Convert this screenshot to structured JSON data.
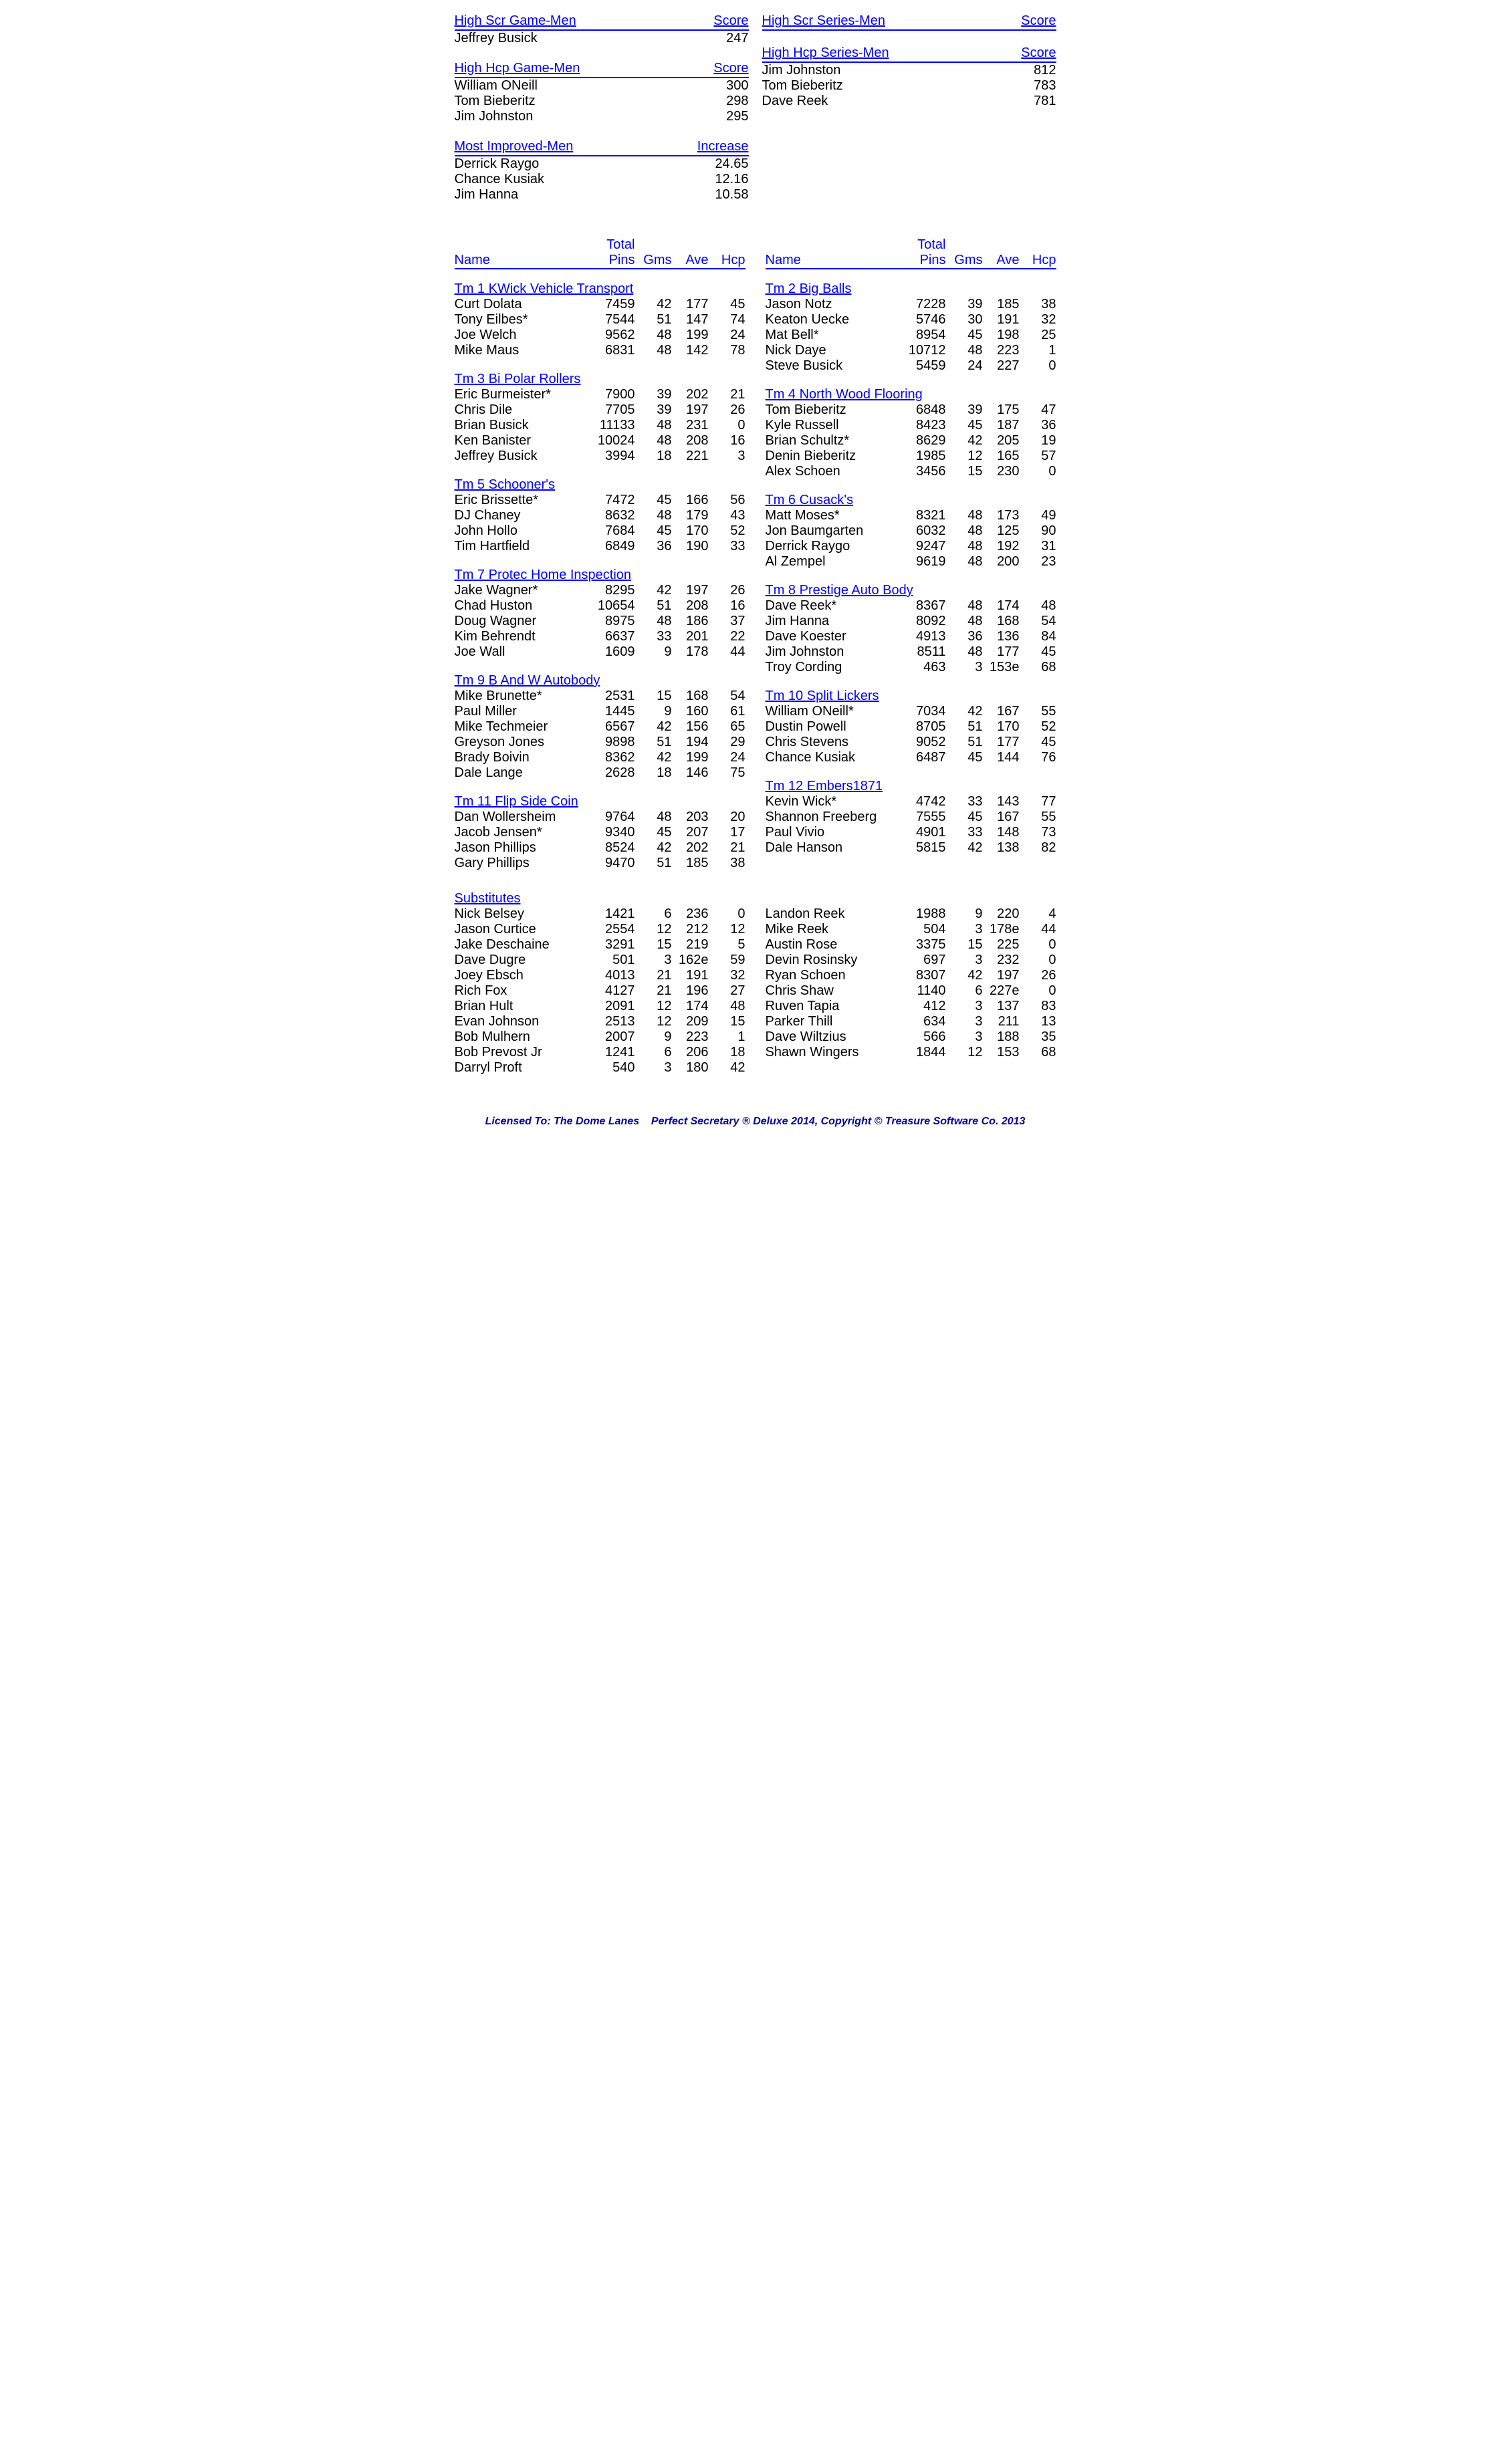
{
  "colors": {
    "link": "#0000ff",
    "text": "#000000",
    "footer": "#0000a0",
    "background": "#ffffff"
  },
  "topLeft": [
    {
      "label": "High Scr Game-Men",
      "scoreLabel": "Score",
      "rows": [
        {
          "name": "Jeffrey Busick",
          "score": "247"
        }
      ]
    },
    {
      "label": "High Hcp Game-Men",
      "scoreLabel": "Score",
      "rows": [
        {
          "name": "William ONeill",
          "score": "300"
        },
        {
          "name": "Tom Bieberitz",
          "score": "298"
        },
        {
          "name": "Jim Johnston",
          "score": "295"
        }
      ]
    },
    {
      "label": "Most Improved-Men",
      "scoreLabel": "Increase",
      "rows": [
        {
          "name": "Derrick Raygo",
          "score": "24.65"
        },
        {
          "name": "Chance Kusiak",
          "score": "12.16"
        },
        {
          "name": "Jim Hanna",
          "score": "10.58"
        }
      ]
    }
  ],
  "topRight": [
    {
      "label": "High Scr Series-Men",
      "scoreLabel": "Score",
      "rows": []
    },
    {
      "label": "High Hcp Series-Men",
      "scoreLabel": "Score",
      "rows": [
        {
          "name": "Jim Johnston",
          "score": "812"
        },
        {
          "name": "Tom Bieberitz",
          "score": "783"
        },
        {
          "name": "Dave Reek",
          "score": "781"
        }
      ]
    }
  ],
  "rosterHeader": {
    "name": "Name",
    "totalPins1": "Total",
    "totalPins2": "Pins",
    "gms": "Gms",
    "ave": "Ave",
    "hcp": "Hcp"
  },
  "teamsLeft": [
    {
      "title": "Tm 1 KWick Vehicle Transport",
      "players": [
        {
          "n": "Curt Dolata",
          "p": "7459",
          "g": "42",
          "a": "177",
          "h": "45"
        },
        {
          "n": "Tony Eilbes*",
          "p": "7544",
          "g": "51",
          "a": "147",
          "h": "74"
        },
        {
          "n": "Joe Welch",
          "p": "9562",
          "g": "48",
          "a": "199",
          "h": "24"
        },
        {
          "n": "Mike Maus",
          "p": "6831",
          "g": "48",
          "a": "142",
          "h": "78"
        }
      ]
    },
    {
      "title": "Tm 3 Bi Polar Rollers",
      "players": [
        {
          "n": "Eric Burmeister*",
          "p": "7900",
          "g": "39",
          "a": "202",
          "h": "21"
        },
        {
          "n": "Chris Dile",
          "p": "7705",
          "g": "39",
          "a": "197",
          "h": "26"
        },
        {
          "n": "Brian Busick",
          "p": "11133",
          "g": "48",
          "a": "231",
          "h": "0"
        },
        {
          "n": "Ken Banister",
          "p": "10024",
          "g": "48",
          "a": "208",
          "h": "16"
        },
        {
          "n": "Jeffrey Busick",
          "p": "3994",
          "g": "18",
          "a": "221",
          "h": "3"
        }
      ]
    },
    {
      "title": "Tm 5 Schooner's",
      "players": [
        {
          "n": "Eric Brissette*",
          "p": "7472",
          "g": "45",
          "a": "166",
          "h": "56"
        },
        {
          "n": "DJ Chaney",
          "p": "8632",
          "g": "48",
          "a": "179",
          "h": "43"
        },
        {
          "n": "John Hollo",
          "p": "7684",
          "g": "45",
          "a": "170",
          "h": "52"
        },
        {
          "n": "Tim Hartfield",
          "p": "6849",
          "g": "36",
          "a": "190",
          "h": "33"
        }
      ]
    },
    {
      "title": "Tm 7 Protec Home Inspection",
      "players": [
        {
          "n": "Jake Wagner*",
          "p": "8295",
          "g": "42",
          "a": "197",
          "h": "26"
        },
        {
          "n": "Chad Huston",
          "p": "10654",
          "g": "51",
          "a": "208",
          "h": "16"
        },
        {
          "n": "Doug Wagner",
          "p": "8975",
          "g": "48",
          "a": "186",
          "h": "37"
        },
        {
          "n": "Kim Behrendt",
          "p": "6637",
          "g": "33",
          "a": "201",
          "h": "22"
        },
        {
          "n": "Joe Wall",
          "p": "1609",
          "g": "9",
          "a": "178",
          "h": "44"
        }
      ]
    },
    {
      "title": "Tm 9 B And W Autobody",
      "players": [
        {
          "n": "Mike Brunette*",
          "p": "2531",
          "g": "15",
          "a": "168",
          "h": "54"
        },
        {
          "n": "Paul Miller",
          "p": "1445",
          "g": "9",
          "a": "160",
          "h": "61"
        },
        {
          "n": "Mike Techmeier",
          "p": "6567",
          "g": "42",
          "a": "156",
          "h": "65"
        },
        {
          "n": "Greyson Jones",
          "p": "9898",
          "g": "51",
          "a": "194",
          "h": "29"
        },
        {
          "n": "Brady Boivin",
          "p": "8362",
          "g": "42",
          "a": "199",
          "h": "24"
        },
        {
          "n": "Dale Lange",
          "p": "2628",
          "g": "18",
          "a": "146",
          "h": "75"
        }
      ]
    },
    {
      "title": "Tm 11 Flip Side Coin",
      "players": [
        {
          "n": "Dan Wollersheim",
          "p": "9764",
          "g": "48",
          "a": "203",
          "h": "20"
        },
        {
          "n": "Jacob Jensen*",
          "p": "9340",
          "g": "45",
          "a": "207",
          "h": "17"
        },
        {
          "n": "Jason Phillips",
          "p": "8524",
          "g": "42",
          "a": "202",
          "h": "21"
        },
        {
          "n": "Gary Phillips",
          "p": "9470",
          "g": "51",
          "a": "185",
          "h": "38"
        }
      ]
    }
  ],
  "teamsRight": [
    {
      "title": "Tm 2 Big Balls",
      "players": [
        {
          "n": "Jason Notz",
          "p": "7228",
          "g": "39",
          "a": "185",
          "h": "38"
        },
        {
          "n": "Keaton Uecke",
          "p": "5746",
          "g": "30",
          "a": "191",
          "h": "32"
        },
        {
          "n": "Mat Bell*",
          "p": "8954",
          "g": "45",
          "a": "198",
          "h": "25"
        },
        {
          "n": "Nick Daye",
          "p": "10712",
          "g": "48",
          "a": "223",
          "h": "1"
        },
        {
          "n": "Steve Busick",
          "p": "5459",
          "g": "24",
          "a": "227",
          "h": "0"
        }
      ]
    },
    {
      "title": "Tm 4 North Wood Flooring",
      "players": [
        {
          "n": "Tom Bieberitz",
          "p": "6848",
          "g": "39",
          "a": "175",
          "h": "47"
        },
        {
          "n": "Kyle Russell",
          "p": "8423",
          "g": "45",
          "a": "187",
          "h": "36"
        },
        {
          "n": "Brian Schultz*",
          "p": "8629",
          "g": "42",
          "a": "205",
          "h": "19"
        },
        {
          "n": "Denin Bieberitz",
          "p": "1985",
          "g": "12",
          "a": "165",
          "h": "57"
        },
        {
          "n": "Alex Schoen",
          "p": "3456",
          "g": "15",
          "a": "230",
          "h": "0"
        }
      ]
    },
    {
      "title": "Tm 6 Cusack's",
      "players": [
        {
          "n": "Matt Moses*",
          "p": "8321",
          "g": "48",
          "a": "173",
          "h": "49"
        },
        {
          "n": "Jon Baumgarten",
          "p": "6032",
          "g": "48",
          "a": "125",
          "h": "90"
        },
        {
          "n": "Derrick Raygo",
          "p": "9247",
          "g": "48",
          "a": "192",
          "h": "31"
        },
        {
          "n": "Al Zempel",
          "p": "9619",
          "g": "48",
          "a": "200",
          "h": "23"
        }
      ]
    },
    {
      "title": "Tm 8 Prestige Auto Body",
      "players": [
        {
          "n": "Dave Reek*",
          "p": "8367",
          "g": "48",
          "a": "174",
          "h": "48"
        },
        {
          "n": "Jim Hanna",
          "p": "8092",
          "g": "48",
          "a": "168",
          "h": "54"
        },
        {
          "n": "Dave Koester",
          "p": "4913",
          "g": "36",
          "a": "136",
          "h": "84"
        },
        {
          "n": "Jim Johnston",
          "p": "8511",
          "g": "48",
          "a": "177",
          "h": "45"
        },
        {
          "n": "Troy Cording",
          "p": "463",
          "g": "3",
          "a": "153e",
          "h": "68"
        }
      ]
    },
    {
      "title": "Tm 10 Split Lickers",
      "players": [
        {
          "n": "William ONeill*",
          "p": "7034",
          "g": "42",
          "a": "167",
          "h": "55"
        },
        {
          "n": "Dustin Powell",
          "p": "8705",
          "g": "51",
          "a": "170",
          "h": "52"
        },
        {
          "n": "Chris Stevens",
          "p": "9052",
          "g": "51",
          "a": "177",
          "h": "45"
        },
        {
          "n": "Chance Kusiak",
          "p": "6487",
          "g": "45",
          "a": "144",
          "h": "76"
        }
      ]
    },
    {
      "title": "Tm 12 Embers1871",
      "players": [
        {
          "n": "Kevin Wick*",
          "p": "4742",
          "g": "33",
          "a": "143",
          "h": "77"
        },
        {
          "n": "Shannon Freeberg",
          "p": "7555",
          "g": "45",
          "a": "167",
          "h": "55"
        },
        {
          "n": "Paul Vivio",
          "p": "4901",
          "g": "33",
          "a": "148",
          "h": "73"
        },
        {
          "n": "Dale Hanson",
          "p": "5815",
          "g": "42",
          "a": "138",
          "h": "82"
        }
      ]
    }
  ],
  "subsTitle": "Substitutes",
  "subsLeft": [
    {
      "n": "Nick Belsey",
      "p": "1421",
      "g": "6",
      "a": "236",
      "h": "0"
    },
    {
      "n": "Jason Curtice",
      "p": "2554",
      "g": "12",
      "a": "212",
      "h": "12"
    },
    {
      "n": "Jake Deschaine",
      "p": "3291",
      "g": "15",
      "a": "219",
      "h": "5"
    },
    {
      "n": "Dave Dugre",
      "p": "501",
      "g": "3",
      "a": "162e",
      "h": "59"
    },
    {
      "n": "Joey Ebsch",
      "p": "4013",
      "g": "21",
      "a": "191",
      "h": "32"
    },
    {
      "n": "Rich Fox",
      "p": "4127",
      "g": "21",
      "a": "196",
      "h": "27"
    },
    {
      "n": "Brian Hult",
      "p": "2091",
      "g": "12",
      "a": "174",
      "h": "48"
    },
    {
      "n": "Evan Johnson",
      "p": "2513",
      "g": "12",
      "a": "209",
      "h": "15"
    },
    {
      "n": "Bob Mulhern",
      "p": "2007",
      "g": "9",
      "a": "223",
      "h": "1"
    },
    {
      "n": "Bob Prevost Jr",
      "p": "1241",
      "g": "6",
      "a": "206",
      "h": "18"
    },
    {
      "n": "Darryl Proft",
      "p": "540",
      "g": "3",
      "a": "180",
      "h": "42"
    }
  ],
  "subsRight": [
    {
      "n": "Landon Reek",
      "p": "1988",
      "g": "9",
      "a": "220",
      "h": "4"
    },
    {
      "n": "Mike Reek",
      "p": "504",
      "g": "3",
      "a": "178e",
      "h": "44"
    },
    {
      "n": "Austin Rose",
      "p": "3375",
      "g": "15",
      "a": "225",
      "h": "0"
    },
    {
      "n": "Devin Rosinsky",
      "p": "697",
      "g": "3",
      "a": "232",
      "h": "0"
    },
    {
      "n": "Ryan Schoen",
      "p": "8307",
      "g": "42",
      "a": "197",
      "h": "26"
    },
    {
      "n": "Chris Shaw",
      "p": "1140",
      "g": "6",
      "a": "227e",
      "h": "0"
    },
    {
      "n": "Ruven Tapia",
      "p": "412",
      "g": "3",
      "a": "137",
      "h": "83"
    },
    {
      "n": "Parker Thill",
      "p": "634",
      "g": "3",
      "a": "211",
      "h": "13"
    },
    {
      "n": "Dave Wiltzius",
      "p": "566",
      "g": "3",
      "a": "188",
      "h": "35"
    },
    {
      "n": "Shawn Wingers",
      "p": "1844",
      "g": "12",
      "a": "153",
      "h": "68"
    }
  ],
  "footer": "Licensed To: The Dome Lanes    Perfect Secretary ® Deluxe  2014, Copyright © Treasure Software Co. 2013"
}
